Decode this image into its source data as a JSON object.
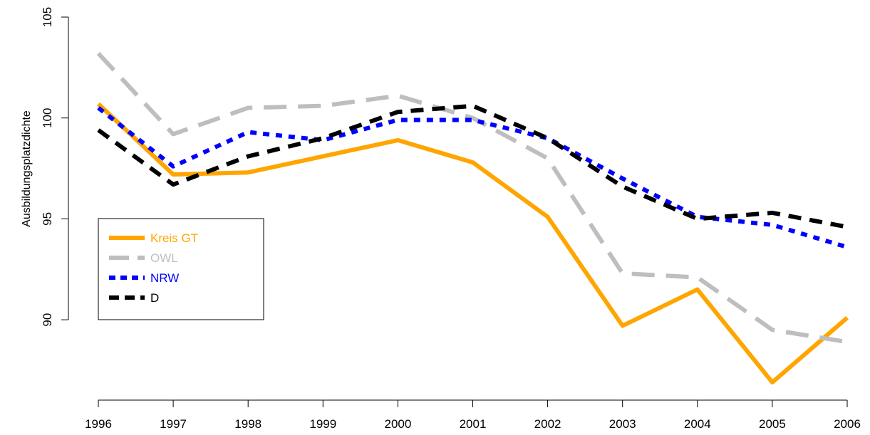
{
  "chart_data": {
    "type": "line",
    "title": "",
    "xlabel": "",
    "ylabel": "Ausbildungsplatzdichte",
    "x": [
      1996,
      1997,
      1998,
      1999,
      2000,
      2001,
      2002,
      2003,
      2004,
      2005,
      2006
    ],
    "x_tick_labels": [
      "1996",
      "1997",
      "1998",
      "1999",
      "2000",
      "2001",
      "2002",
      "2003",
      "2004",
      "2005",
      "2006"
    ],
    "y_ticks": [
      90,
      95,
      100,
      105
    ],
    "y_tick_labels": [
      "90",
      "95",
      "100",
      "105"
    ],
    "xlim": [
      1996,
      2006
    ],
    "ylim": [
      86.9,
      105
    ],
    "grid": false,
    "legend_position": "left",
    "series": [
      {
        "name": "Kreis GT",
        "color": "#FFA500",
        "dash": "solid",
        "values": [
          100.7,
          97.2,
          97.3,
          98.1,
          98.9,
          97.8,
          95.1,
          89.7,
          91.5,
          86.9,
          90.1
        ]
      },
      {
        "name": "OWL",
        "color": "#BEBEBE",
        "dash": "long-dash",
        "values": [
          103.2,
          99.2,
          100.5,
          100.6,
          101.1,
          100.0,
          98.0,
          92.3,
          92.1,
          89.5,
          88.9
        ]
      },
      {
        "name": "NRW",
        "color": "#0000FF",
        "dash": "dotted",
        "values": [
          100.5,
          97.6,
          99.3,
          98.9,
          99.9,
          99.9,
          99.0,
          97.0,
          95.1,
          94.7,
          93.6
        ]
      },
      {
        "name": "D",
        "color": "#000000",
        "dash": "dash",
        "values": [
          99.4,
          96.7,
          98.1,
          99.0,
          100.3,
          100.6,
          99.0,
          96.6,
          95.0,
          95.3,
          94.6
        ]
      }
    ]
  }
}
